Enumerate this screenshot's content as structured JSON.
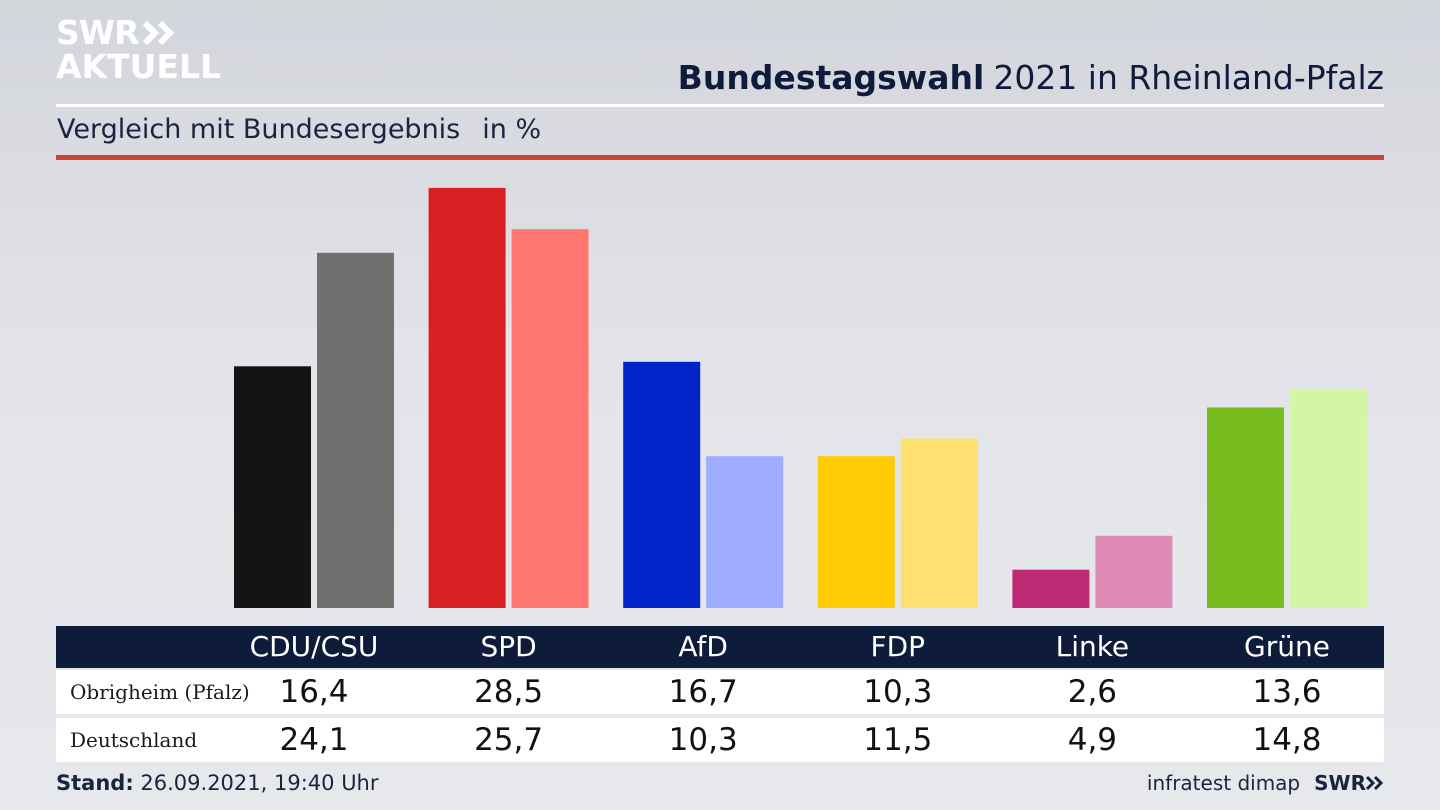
{
  "logo": {
    "line1": "SWR",
    "line2": "AKTUELL"
  },
  "title": {
    "bold": "Bundestagswahl",
    "rest": "2021 in Rheinland-Pfalz"
  },
  "subtitle": {
    "text": "Vergleich mit Bundesergebnis",
    "unit": "in %"
  },
  "colors": {
    "CDU/CSU": [
      "#141414",
      "#72706e"
    ],
    "SPD": [
      "#d81f22",
      "#ff7770"
    ],
    "AfD": [
      "#0024c8",
      "#9eadff"
    ],
    "FDP": [
      "#ffcb05",
      "#fde070"
    ],
    "Linke": [
      "#be2a73",
      "#e08ab8"
    ],
    "Grüne": [
      "#77bd1f",
      "#d4f5a6"
    ],
    "header": "#0f1b3a",
    "accent_rule": "#cc4536"
  },
  "chart_data": {
    "type": "bar",
    "categories": [
      "CDU/CSU",
      "SPD",
      "AfD",
      "FDP",
      "Linke",
      "Grüne"
    ],
    "series": [
      {
        "name": "Obrigheim (Pfalz)",
        "values": [
          16.4,
          28.5,
          16.7,
          10.3,
          2.6,
          13.6
        ]
      },
      {
        "name": "Deutschland",
        "values": [
          24.1,
          25.7,
          10.3,
          11.5,
          4.9,
          14.8
        ]
      }
    ],
    "title": "Bundestagswahl 2021 in Rheinland-Pfalz",
    "subtitle": "Vergleich mit Bundesergebnis",
    "unit": "in %",
    "grid": false
  },
  "table": {
    "rows": [
      {
        "label": "Obrigheim (Pfalz)",
        "values": [
          "16,4",
          "28,5",
          "16,7",
          "10,3",
          "2,6",
          "13,6"
        ]
      },
      {
        "label": "Deutschland",
        "values": [
          "24,1",
          "25,7",
          "10,3",
          "11,5",
          "4,9",
          "14,8"
        ]
      }
    ]
  },
  "footer": {
    "stand_label": "Stand:",
    "stand_value": "26.09.2021, 19:40 Uhr",
    "source": "infratest dimap",
    "brand": "SWR"
  }
}
